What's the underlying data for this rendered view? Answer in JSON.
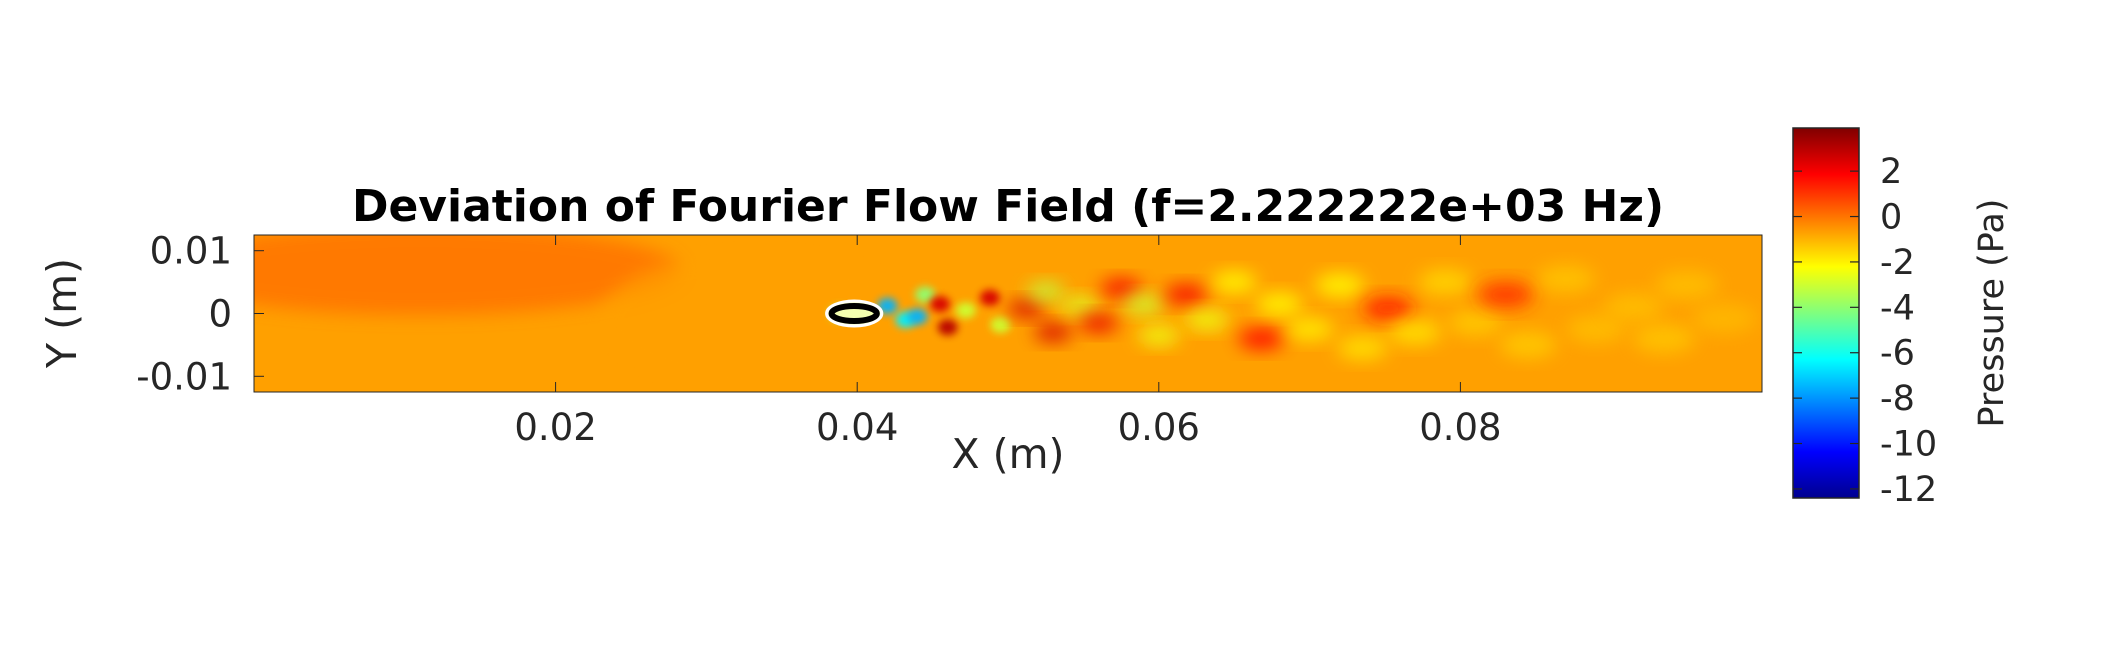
{
  "chart_data": {
    "type": "heatmap",
    "title": "Deviation of Fourier Flow Field (f=2.222222e+03 Hz)",
    "xlabel": "X (m)",
    "ylabel": "Y (m)",
    "xlim": [
      0.0,
      0.1
    ],
    "ylim": [
      -0.0125,
      0.0125
    ],
    "x_ticks": [
      0.02,
      0.04,
      0.06,
      0.08
    ],
    "x_tick_labels": [
      "0.02",
      "0.04",
      "0.06",
      "0.08"
    ],
    "y_ticks": [
      0.01,
      0,
      -0.01
    ],
    "y_tick_labels": [
      "0.01",
      "0",
      "-0.01"
    ],
    "colorbar": {
      "label": "Pressure (Pa)",
      "colormap": "jet",
      "range": [
        -12.4,
        3.9
      ],
      "ticks": [
        2,
        0,
        -2,
        -4,
        -6,
        -8,
        -10,
        -12
      ],
      "tick_labels": [
        "2",
        "0",
        "-2",
        "-4",
        "-6",
        "-8",
        "-10",
        "-12"
      ]
    },
    "background_value": -0.7,
    "obstacle": {
      "shape": "ellipse",
      "center": [
        0.0398,
        0.0
      ],
      "semi_axes": [
        0.0015,
        0.0012
      ]
    },
    "features": [
      {
        "x": 0.0388,
        "y": 0.0,
        "value": -3.5
      },
      {
        "x": 0.042,
        "y": 0.0012,
        "value": -7.5
      },
      {
        "x": 0.0432,
        "y": -0.001,
        "value": -6.5
      },
      {
        "x": 0.0445,
        "y": 0.003,
        "value": -4.0
      },
      {
        "x": 0.044,
        "y": -0.0005,
        "value": -7.5
      },
      {
        "x": 0.0455,
        "y": 0.0015,
        "value": 2.5
      },
      {
        "x": 0.046,
        "y": -0.0022,
        "value": 3.0
      },
      {
        "x": 0.0472,
        "y": 0.0005,
        "value": -3.0
      },
      {
        "x": 0.0488,
        "y": 0.0025,
        "value": 2.5
      },
      {
        "x": 0.0495,
        "y": -0.0018,
        "value": -3.0
      },
      {
        "x": 0.0512,
        "y": 0.0008,
        "value": 2.5
      },
      {
        "x": 0.0525,
        "y": 0.0035,
        "value": -3.2
      },
      {
        "x": 0.053,
        "y": -0.003,
        "value": 2.5
      },
      {
        "x": 0.0548,
        "y": 0.0012,
        "value": -2.8
      },
      {
        "x": 0.056,
        "y": -0.0015,
        "value": 2.2
      },
      {
        "x": 0.0575,
        "y": 0.004,
        "value": 2.0
      },
      {
        "x": 0.059,
        "y": 0.0015,
        "value": -3.0
      },
      {
        "x": 0.06,
        "y": -0.0035,
        "value": -2.5
      },
      {
        "x": 0.0618,
        "y": 0.003,
        "value": 2.0
      },
      {
        "x": 0.0632,
        "y": -0.001,
        "value": -2.5
      },
      {
        "x": 0.065,
        "y": 0.005,
        "value": -2.2
      },
      {
        "x": 0.0668,
        "y": -0.004,
        "value": 1.8
      },
      {
        "x": 0.068,
        "y": 0.0015,
        "value": -2.2
      },
      {
        "x": 0.07,
        "y": -0.0025,
        "value": -2.0
      },
      {
        "x": 0.072,
        "y": 0.0045,
        "value": -2.2
      },
      {
        "x": 0.0735,
        "y": -0.0055,
        "value": -1.8
      },
      {
        "x": 0.0752,
        "y": 0.0008,
        "value": 1.5
      },
      {
        "x": 0.077,
        "y": -0.003,
        "value": -1.8
      },
      {
        "x": 0.079,
        "y": 0.005,
        "value": -1.6
      },
      {
        "x": 0.081,
        "y": -0.0015,
        "value": -1.4
      },
      {
        "x": 0.083,
        "y": 0.003,
        "value": 1.2
      },
      {
        "x": 0.0845,
        "y": -0.005,
        "value": -1.4
      },
      {
        "x": 0.087,
        "y": 0.0055,
        "value": -1.3
      },
      {
        "x": 0.089,
        "y": -0.0025,
        "value": -1.2
      },
      {
        "x": 0.0915,
        "y": 0.001,
        "value": -1.2
      },
      {
        "x": 0.0935,
        "y": -0.004,
        "value": -1.3
      },
      {
        "x": 0.095,
        "y": 0.0045,
        "value": -1.2
      },
      {
        "x": 0.0975,
        "y": -0.0008,
        "value": -1.1
      }
    ]
  }
}
